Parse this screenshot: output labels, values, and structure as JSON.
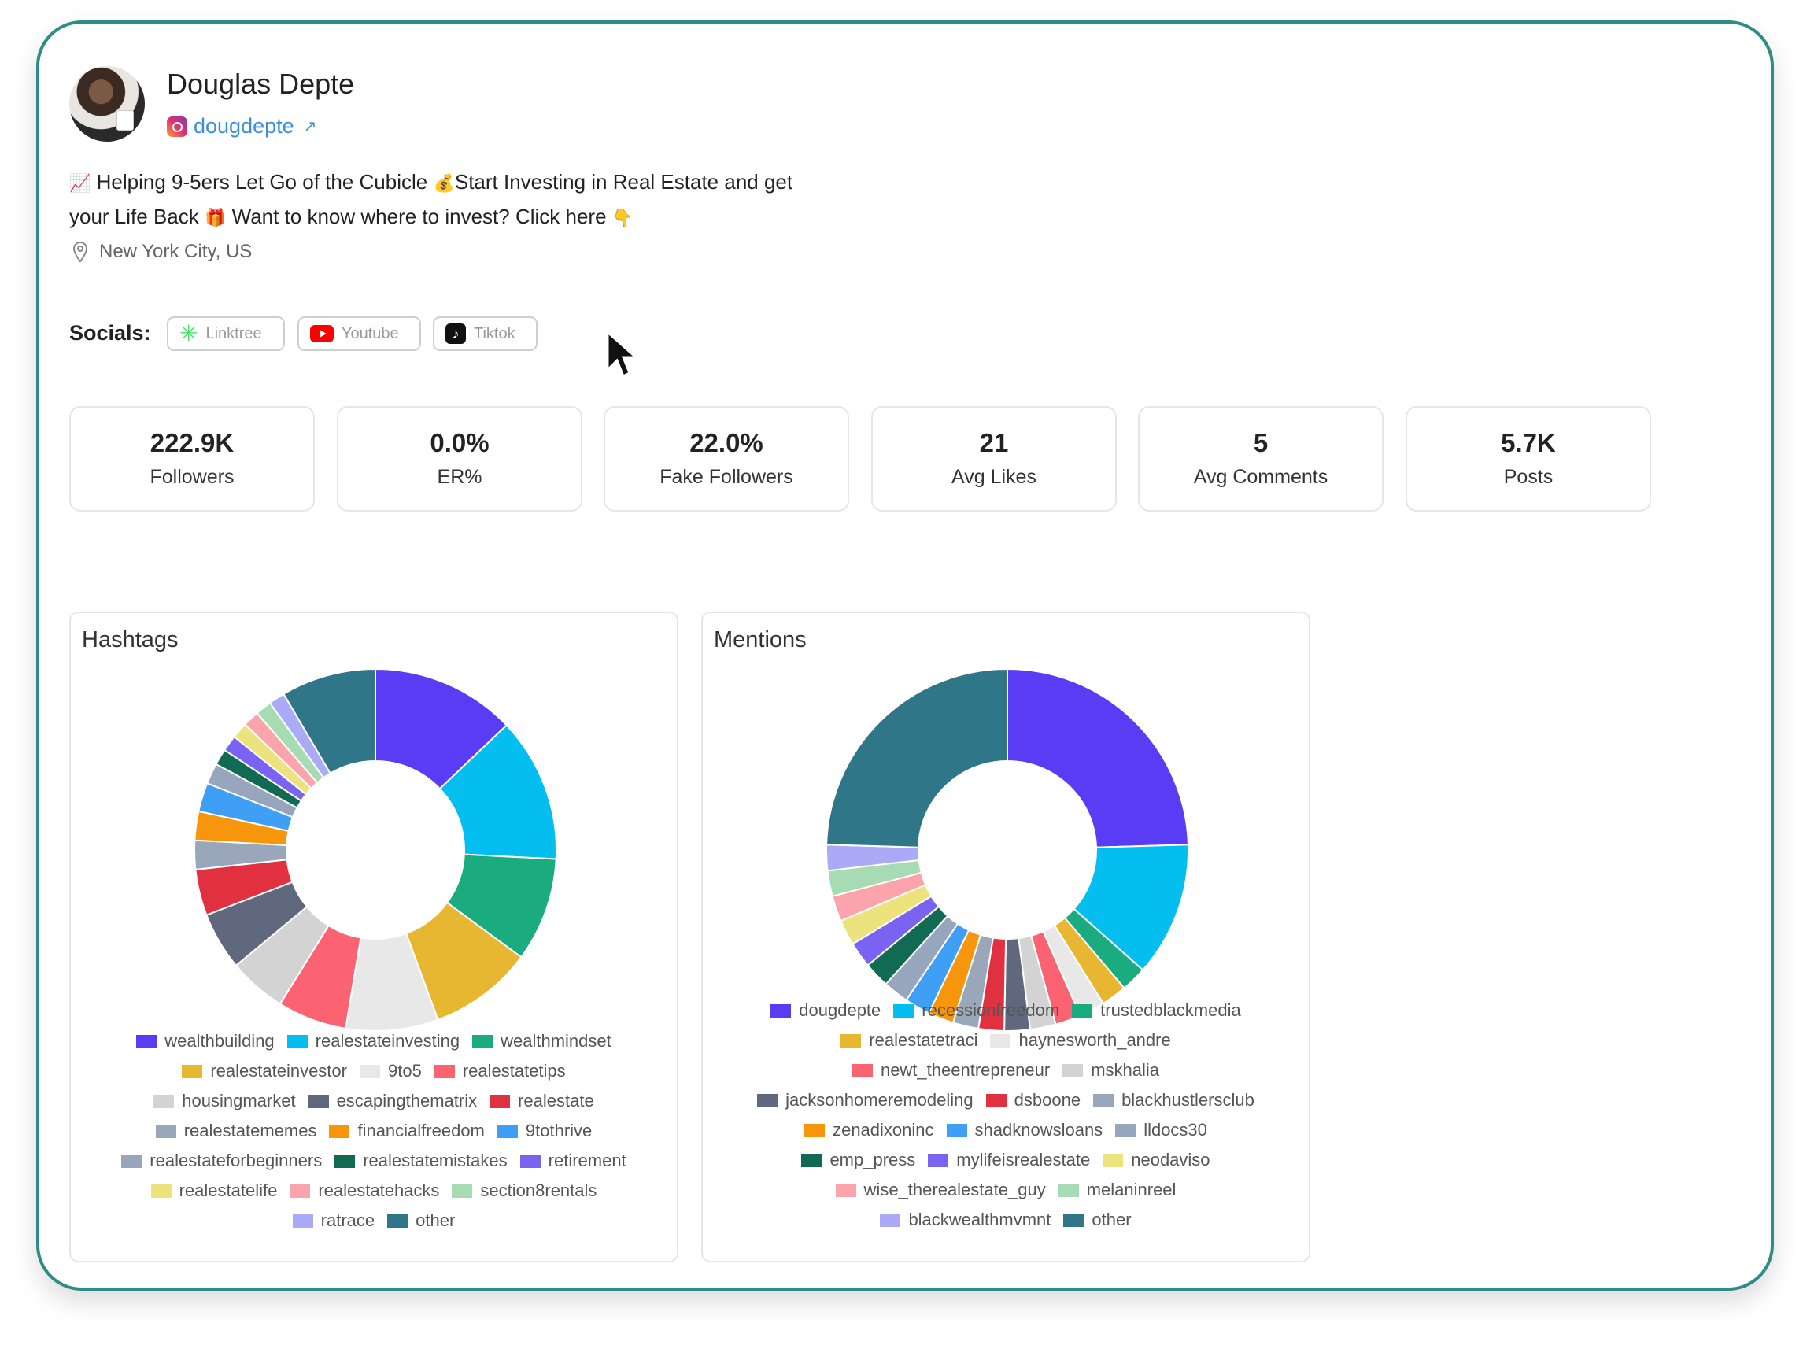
{
  "profile": {
    "name": "Douglas Depte",
    "handle": "dougdepte",
    "handle_arrow": "↗",
    "bio_line1": "Helping 9-5ers Let Go of the Cubicle",
    "bio_line1b": "Start Investing in Real Estate and get",
    "bio_line2": "your Life Back",
    "bio_line2b": "Want to know where to invest? Click here",
    "emoji_chart": "📈",
    "emoji_money": "💰",
    "emoji_gift": "🎁",
    "emoji_point": "👇",
    "location": "New York City, US"
  },
  "socials": {
    "label": "Socials:",
    "links": [
      {
        "label": "Linktree",
        "icon": "linktree-icon"
      },
      {
        "label": "Youtube",
        "icon": "youtube-icon"
      },
      {
        "label": "Tiktok",
        "icon": "tiktok-icon"
      }
    ]
  },
  "stats": [
    {
      "value": "222.9K",
      "label": "Followers"
    },
    {
      "value": "0.0%",
      "label": "ER%"
    },
    {
      "value": "22.0%",
      "label": "Fake Followers"
    },
    {
      "value": "21",
      "label": "Avg Likes"
    },
    {
      "value": "5",
      "label": "Avg Comments"
    },
    {
      "value": "5.7K",
      "label": "Posts"
    }
  ],
  "chart_data": [
    {
      "type": "pie",
      "title": "Hashtags",
      "donut": true,
      "labels": [
        "wealthbuilding",
        "realestateinvesting",
        "wealthmindset",
        "realestateinvestor",
        "9to5",
        "realestatetips",
        "housingmarket",
        "escapingthematrix",
        "realestate",
        "realestatememes",
        "financialfreedom",
        "9tothrive",
        "realestateforbeginners",
        "realestatemistakes",
        "retirement",
        "realestatelife",
        "realestatehacks",
        "section8rentals",
        "ratrace",
        "other"
      ],
      "values": [
        12.5,
        12.5,
        9.0,
        9.0,
        8.0,
        6.0,
        5.0,
        5.0,
        4.0,
        2.5,
        2.5,
        2.5,
        1.8,
        1.4,
        1.4,
        1.4,
        1.4,
        1.4,
        1.4,
        8.2
      ],
      "colors": [
        "#5b3cf5",
        "#05bef0",
        "#1aab7f",
        "#e8b731",
        "#e8e8e8",
        "#fb6373",
        "#d3d3d3",
        "#5f687c",
        "#e1303f",
        "#9aa7bb",
        "#f7950c",
        "#3f9ff5",
        "#97a5bd",
        "#106b52",
        "#7b63f2",
        "#ece37d",
        "#fba4ab",
        "#a7dbb3",
        "#aaaaf6",
        "#307689"
      ]
    },
    {
      "type": "pie",
      "title": "Mentions",
      "donut": true,
      "labels": [
        "dougdepte",
        "recessionfreedom",
        "trustedblackmedia",
        "realestatetraci",
        "haynesworth_andre",
        "newt_theentrepreneur",
        "mskhalia",
        "jacksonhomeremodeling",
        "dsboone",
        "blackhustlersclub",
        "zenadixoninc",
        "shadknowsloans",
        "lldocs30",
        "emp_press",
        "mylifeisrealestate",
        "neodaviso",
        "wise_therealestate_guy",
        "melaninreel",
        "blackwealthmvmnt",
        "other"
      ],
      "values": [
        22.5,
        11.0,
        2.1,
        2.1,
        2.1,
        2.1,
        2.1,
        2.1,
        2.1,
        2.1,
        2.1,
        2.1,
        2.1,
        2.1,
        2.1,
        2.1,
        2.1,
        2.1,
        2.1,
        22.5
      ],
      "colors": [
        "#5b3cf5",
        "#05bef0",
        "#1aab7f",
        "#e8b731",
        "#e8e8e8",
        "#fb6373",
        "#d3d3d3",
        "#5f687c",
        "#e1303f",
        "#9aa7bb",
        "#f7950c",
        "#3f9ff5",
        "#97a5bd",
        "#106b52",
        "#7b63f2",
        "#ece37d",
        "#fba4ab",
        "#a7dbb3",
        "#aaaaf6",
        "#307689"
      ]
    }
  ]
}
